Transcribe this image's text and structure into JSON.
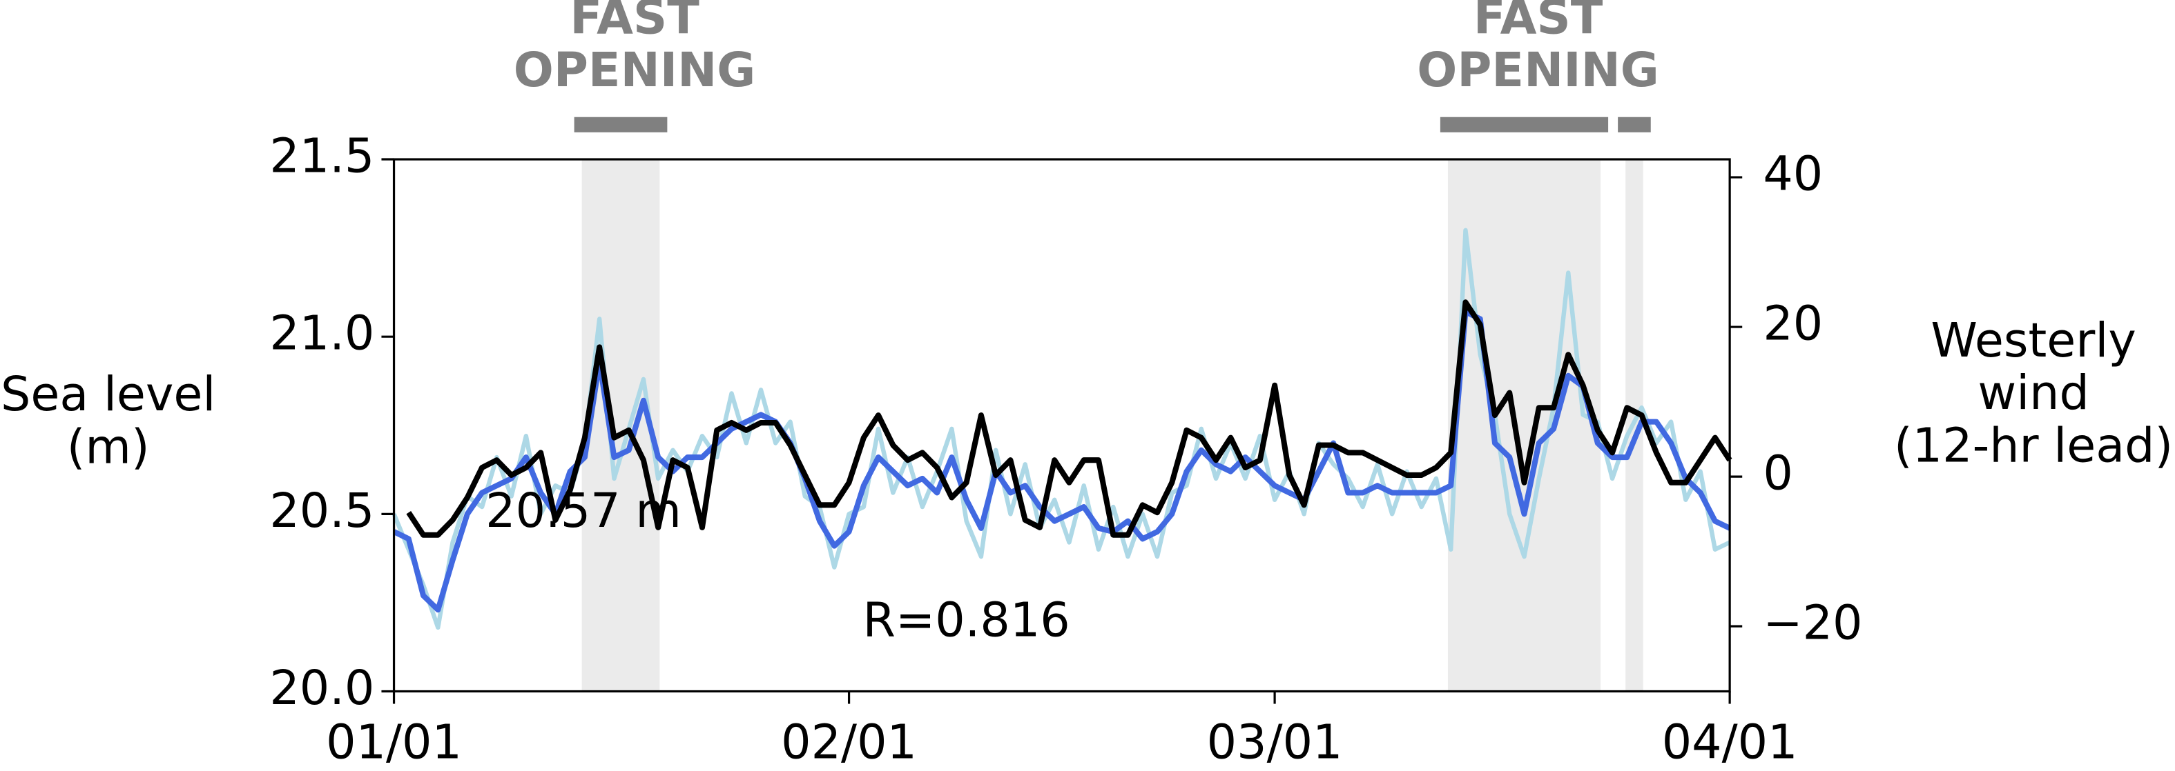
{
  "chart_data": {
    "type": "line",
    "x": [
      0,
      1,
      2,
      3,
      4,
      5,
      6,
      7,
      8,
      9,
      10,
      11,
      12,
      13,
      14,
      15,
      16,
      17,
      18,
      19,
      20,
      21,
      22,
      23,
      24,
      25,
      26,
      27,
      28,
      29,
      30,
      31,
      32,
      33,
      34,
      35,
      36,
      37,
      38,
      39,
      40,
      41,
      42,
      43,
      44,
      45,
      46,
      47,
      48,
      49,
      50,
      51,
      52,
      53,
      54,
      55,
      56,
      57,
      58,
      59,
      60,
      61,
      62,
      63,
      64,
      65,
      66,
      67,
      68,
      69,
      70,
      71,
      72,
      73,
      74,
      75,
      76,
      77,
      78,
      79,
      80,
      81,
      82,
      83,
      84,
      85,
      86,
      87,
      88,
      89,
      90,
      91
    ],
    "xlim": [
      0,
      91
    ],
    "xticks": [
      {
        "value": 0,
        "label": "01/01"
      },
      {
        "value": 31,
        "label": "02/01"
      },
      {
        "value": 60,
        "label": "03/01"
      },
      {
        "value": 91,
        "label": "04/01"
      }
    ],
    "ylim": [
      20,
      21.5
    ],
    "yticks": [
      {
        "value": 20,
        "label": "20.0"
      },
      {
        "value": 20.5,
        "label": "20.5"
      },
      {
        "value": 21,
        "label": "21.0"
      },
      {
        "value": 21.5,
        "label": "21.5"
      }
    ],
    "y2lim": [
      -28.7,
      42.4
    ],
    "y2ticks": [
      {
        "value": -20,
        "label": "−20"
      },
      0,
      20,
      40
    ],
    "y_label": [
      "Sea level",
      "(m)"
    ],
    "y2_label": [
      "Westerly",
      "wind",
      "(12-hr lead)"
    ],
    "series": [
      {
        "color": "#add8e6",
        "values": [
          20.5,
          20.4,
          20.3,
          20.18,
          20.42,
          20.55,
          20.52,
          20.66,
          20.55,
          20.72,
          20.5,
          20.58,
          20.56,
          20.7,
          21.05,
          20.6,
          20.74,
          20.88,
          20.6,
          20.68,
          20.62,
          20.72,
          20.66,
          20.84,
          20.7,
          20.85,
          20.7,
          20.76,
          20.55,
          20.52,
          20.35,
          20.5,
          20.52,
          20.74,
          20.56,
          20.66,
          20.52,
          20.62,
          20.74,
          20.48,
          20.38,
          20.68,
          20.5,
          20.64,
          20.46,
          20.54,
          20.42,
          20.58,
          20.4,
          20.52,
          20.38,
          20.5,
          20.38,
          20.56,
          20.58,
          20.74,
          20.6,
          20.7,
          20.6,
          20.72,
          20.54,
          20.62,
          20.5,
          20.7,
          20.64,
          20.6,
          20.52,
          20.64,
          20.5,
          20.62,
          20.52,
          20.6,
          20.4,
          21.3,
          20.95,
          20.78,
          20.5,
          20.38,
          20.6,
          20.8,
          21.18,
          20.78,
          20.76,
          20.6,
          20.72,
          20.8,
          20.7,
          20.76,
          20.54,
          20.62,
          20.4,
          20.42
        ]
      },
      {
        "color": "#4169e1",
        "values": [
          20.45,
          20.43,
          20.27,
          20.23,
          20.37,
          20.5,
          20.56,
          20.58,
          20.6,
          20.66,
          20.56,
          20.5,
          20.62,
          20.66,
          20.93,
          20.66,
          20.68,
          20.82,
          20.66,
          20.62,
          20.66,
          20.66,
          20.7,
          20.74,
          20.76,
          20.78,
          20.76,
          20.7,
          20.6,
          20.48,
          20.41,
          20.45,
          20.58,
          20.66,
          20.62,
          20.58,
          20.6,
          20.56,
          20.66,
          20.54,
          20.46,
          20.62,
          20.56,
          20.58,
          20.52,
          20.48,
          20.5,
          20.52,
          20.46,
          20.45,
          20.48,
          20.43,
          20.45,
          20.5,
          20.62,
          20.68,
          20.64,
          20.62,
          20.66,
          20.62,
          20.58,
          20.56,
          20.54,
          20.62,
          20.7,
          20.56,
          20.56,
          20.58,
          20.56,
          20.56,
          20.56,
          20.56,
          20.58,
          21.07,
          21.05,
          20.7,
          20.66,
          20.5,
          20.7,
          20.74,
          20.89,
          20.86,
          20.7,
          20.66,
          20.66,
          20.76,
          20.76,
          20.7,
          20.6,
          20.56,
          20.48,
          20.46
        ]
      },
      {
        "color": "#000000",
        "axis": "y2",
        "values": [
          null,
          -4.8,
          -7.8,
          -7.8,
          -5.8,
          -2.8,
          1.2,
          2.2,
          0.2,
          1.2,
          3.2,
          -5.8,
          -1.8,
          5.2,
          17.3,
          5.2,
          6.2,
          2.2,
          -6.8,
          2.2,
          1.2,
          -6.8,
          6.2,
          7.2,
          6.2,
          7.2,
          7.2,
          4.2,
          0.2,
          -3.8,
          -3.8,
          -0.8,
          5.2,
          8.2,
          4.2,
          2.2,
          3.2,
          1.2,
          -2.8,
          -0.8,
          8.2,
          0.2,
          2.2,
          -5.8,
          -6.8,
          2.2,
          -0.8,
          2.2,
          2.2,
          -7.8,
          -7.8,
          -3.8,
          -4.8,
          -0.8,
          6.2,
          5.2,
          2.2,
          5.2,
          1.2,
          2.2,
          12.2,
          0.2,
          -3.8,
          4.2,
          4.2,
          3.2,
          3.2,
          2.2,
          1.2,
          0.2,
          0.2,
          1.2,
          3.2,
          23.3,
          20.3,
          8.2,
          11.2,
          -0.8,
          9.2,
          9.2,
          16.3,
          12.2,
          6.2,
          3.2,
          9.2,
          8.2,
          3.2,
          -0.8,
          -0.8,
          2.2,
          5.2,
          2.2
        ]
      }
    ],
    "spans": [
      {
        "start": 12.8,
        "end": 18.1,
        "label": [
          "FAST",
          "OPENING"
        ]
      },
      {
        "start": 71.8,
        "end": 82.2,
        "label": [
          "FAST",
          "OPENING"
        ]
      },
      {
        "start": 83.9,
        "end": 85.1
      }
    ],
    "span_color": "#ebebeb",
    "span_bar_color": "#808080",
    "annotations": [
      "20.57 m",
      "R=0.816"
    ]
  }
}
